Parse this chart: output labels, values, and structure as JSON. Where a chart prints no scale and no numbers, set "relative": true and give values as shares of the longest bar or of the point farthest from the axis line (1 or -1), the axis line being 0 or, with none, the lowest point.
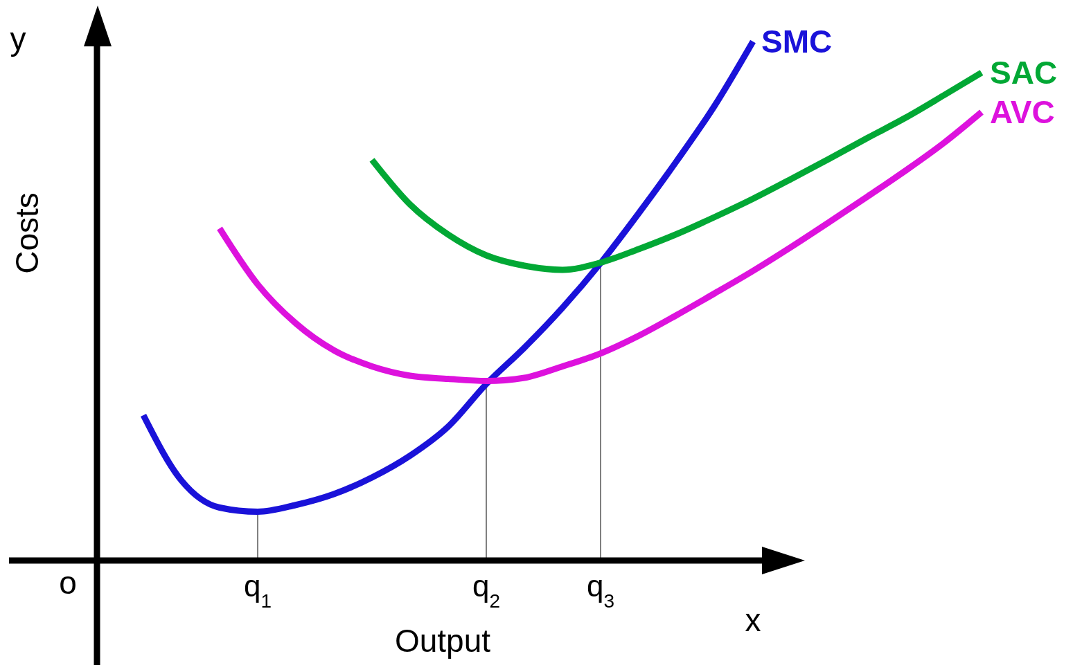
{
  "chart_data": {
    "type": "line",
    "relative": true,
    "xlabel": "Output",
    "ylabel": "Costs",
    "annotations": [
      "o",
      "x",
      "y"
    ],
    "categories": [
      null,
      null,
      null,
      "q$_{1}$",
      null,
      null,
      null,
      null,
      null,
      "q$_{2}$",
      null,
      null,
      "q$_{3}$",
      null,
      null,
      null,
      null,
      null,
      null,
      null,
      null,
      null,
      null
    ],
    "grid": false,
    "legend": false,
    "marker": "none",
    "line_style": "solid",
    "series": [
      {
        "name": "SMC",
        "color": "#1a12d9",
        "values": [
          0.28,
          0.154,
          0.102,
          0.094,
          0.107,
          0.128,
          0.16,
          0.202,
          0.258,
          0.34,
          0.41,
          0.487,
          0.573,
          0.669,
          0.77,
          0.877,
          1.0,
          null,
          null,
          null,
          null,
          null,
          null
        ]
      },
      {
        "name": "SAC",
        "color": "#02a835",
        "values": [
          null,
          null,
          null,
          null,
          null,
          null,
          0.772,
          0.686,
          0.628,
          0.588,
          0.568,
          0.56,
          0.574,
          0.6,
          0.629,
          0.662,
          0.697,
          0.735,
          0.774,
          0.814,
          0.853,
          0.896,
          0.94
        ]
      },
      {
        "name": "AVC",
        "color": "#dd12dd",
        "values": [
          null,
          null,
          0.64,
          0.532,
          0.457,
          0.405,
          0.374,
          0.356,
          0.35,
          0.346,
          0.352,
          0.374,
          0.399,
          0.433,
          0.473,
          0.515,
          0.558,
          0.604,
          0.652,
          0.701,
          0.751,
          0.804,
          0.864
        ]
      }
    ]
  }
}
